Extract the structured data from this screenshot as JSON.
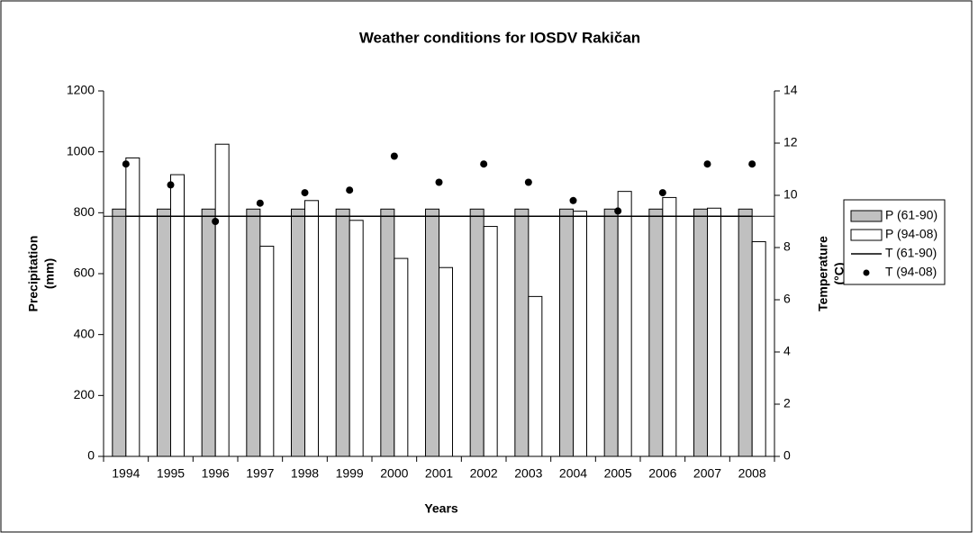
{
  "chart_data": {
    "type": "bar",
    "title": "Weather conditions for IOSDV Rakičan",
    "xlabel": "Years",
    "ylabel": [
      "Precipitation",
      "(mm)"
    ],
    "y2label": [
      "Temperature",
      "(°C)"
    ],
    "categories": [
      "1994",
      "1995",
      "1996",
      "1997",
      "1998",
      "1999",
      "2000",
      "2001",
      "2002",
      "2003",
      "2004",
      "2005",
      "2006",
      "2007",
      "2008"
    ],
    "series": [
      {
        "name": "P (61-90)",
        "type": "bar",
        "color": "#c0c0c0",
        "values": [
          812,
          812,
          812,
          812,
          812,
          812,
          812,
          812,
          812,
          812,
          812,
          812,
          812,
          812,
          812
        ]
      },
      {
        "name": "P (94-08)",
        "type": "bar",
        "color": "#ffffff",
        "values": [
          980,
          925,
          1025,
          690,
          840,
          775,
          650,
          620,
          755,
          525,
          805,
          870,
          850,
          815,
          705
        ]
      },
      {
        "name": "T (61-90)",
        "type": "line",
        "axis": "y2",
        "color": "#000000",
        "values": [
          9.2,
          9.2,
          9.2,
          9.2,
          9.2,
          9.2,
          9.2,
          9.2,
          9.2,
          9.2,
          9.2,
          9.2,
          9.2,
          9.2,
          9.2
        ]
      },
      {
        "name": "T (94-08)",
        "type": "scatter",
        "axis": "y2",
        "color": "#000000",
        "values": [
          11.2,
          10.4,
          9.0,
          9.7,
          10.1,
          10.2,
          11.5,
          10.5,
          11.2,
          10.5,
          9.8,
          9.4,
          10.1,
          11.2,
          11.2
        ]
      }
    ],
    "ylim": [
      0,
      1200
    ],
    "yticks": [
      0,
      200,
      400,
      600,
      800,
      1000,
      1200
    ],
    "y2lim": [
      0,
      14
    ],
    "y2ticks": [
      0,
      2,
      4,
      6,
      8,
      10,
      12,
      14
    ],
    "legend": "right"
  }
}
